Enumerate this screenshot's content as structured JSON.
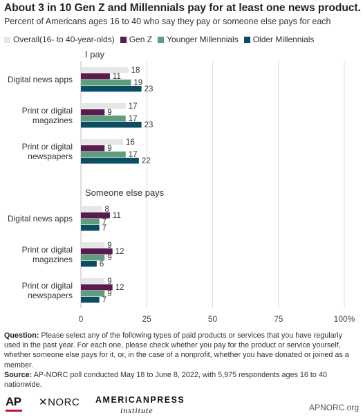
{
  "title": "About 3 in 10 Gen Z and Millennials pay for at least one news product.",
  "subtitle": "Percent of Americans ages 16 to 40 who say they pay or someone else pays for each",
  "chart_data": {
    "type": "bar",
    "orientation": "horizontal",
    "xlim": [
      0,
      100
    ],
    "xticks": [
      "0",
      "25",
      "50",
      "75",
      "100%"
    ],
    "grid": true,
    "legend_position": "top",
    "series": [
      {
        "name": "Overall(16- to 40-year-olds)",
        "color": "#e6e6e6"
      },
      {
        "name": "Gen Z",
        "color": "#5a1c4e"
      },
      {
        "name": "Younger Millennials",
        "color": "#5e9e7e"
      },
      {
        "name": "Older Millennials",
        "color": "#0b4d63"
      }
    ],
    "groups": [
      {
        "label": "I pay",
        "categories": [
          {
            "label": [
              "Digital news apps"
            ],
            "values": [
              18,
              11,
              19,
              23
            ]
          },
          {
            "label": [
              "Print or digital",
              "magazines"
            ],
            "values": [
              17,
              9,
              17,
              23
            ]
          },
          {
            "label": [
              "Print or digital",
              "newspapers"
            ],
            "values": [
              16,
              9,
              17,
              22
            ]
          }
        ]
      },
      {
        "label": "Someone else pays",
        "categories": [
          {
            "label": [
              "Digital news apps"
            ],
            "values": [
              8,
              11,
              7,
              7
            ]
          },
          {
            "label": [
              "Print or digital",
              "magazines"
            ],
            "values": [
              9,
              12,
              9,
              6
            ]
          },
          {
            "label": [
              "Print or digital",
              "newspapers"
            ],
            "values": [
              9,
              12,
              9,
              7
            ]
          }
        ]
      }
    ]
  },
  "notes": {
    "question_label": "Question:",
    "question_text": " Please select any of the following types of paid products or services that you have regularly used in the past year. For each one, please check whether you pay for the product or service yourself, whether someone else pays for it, or, in the case of a nonprofit, whether you have donated or joined as a member.",
    "source_label": "Source:",
    "source_text": " AP-NORC poll conducted May 18 to June 8, 2022, with 5,975 respondents ages 16 to 40 nationwide."
  },
  "footer": {
    "logo_ap": "AP",
    "logo_norc": "NORC",
    "logo_api_top": "AMERICANPRESS",
    "logo_api_bottom": "institute",
    "url": "APNORC.org"
  }
}
